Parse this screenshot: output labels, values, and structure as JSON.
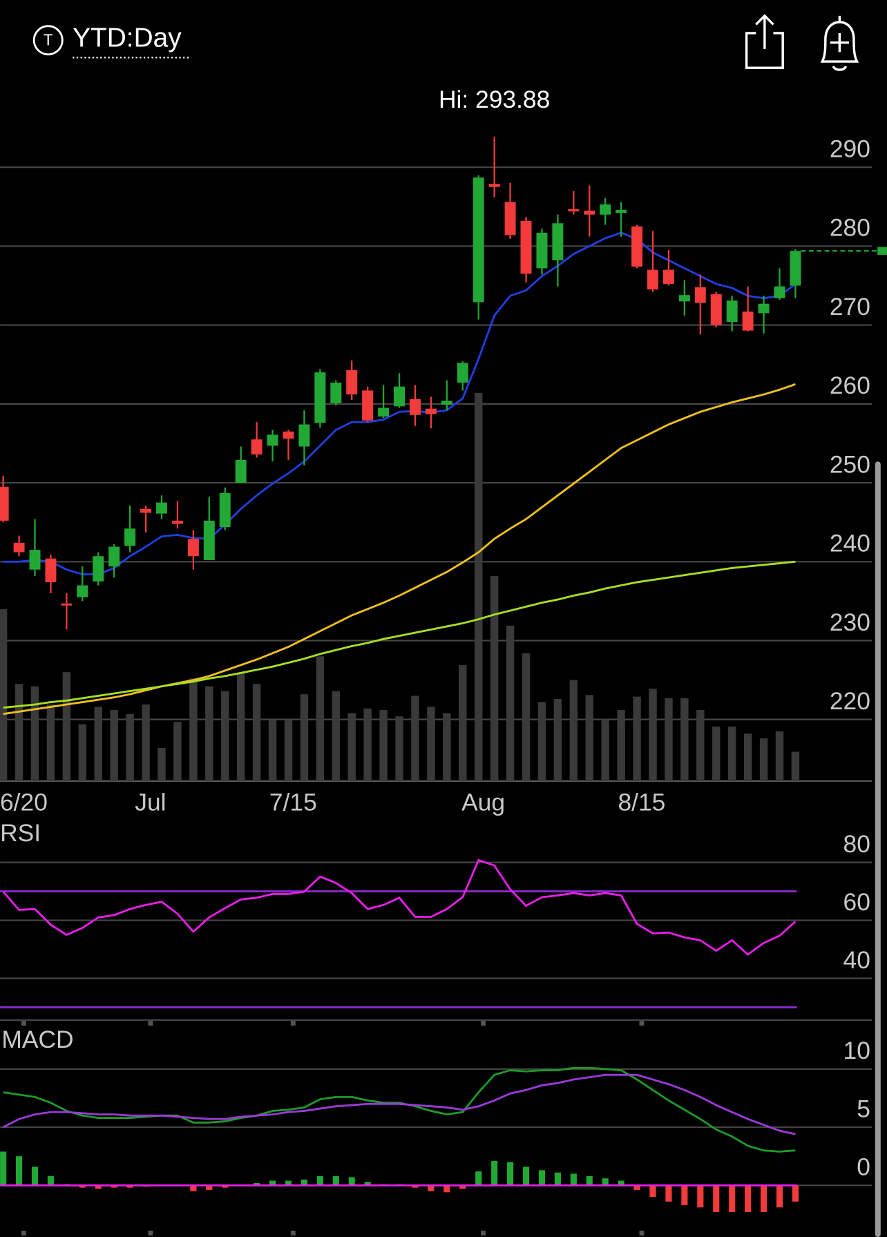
{
  "header": {
    "badge": "T",
    "title": "YTD:Day"
  },
  "chart_data": [
    {
      "type": "candlestick",
      "annotation": "Hi: 293.88",
      "categories": [
        null,
        "6/20",
        null,
        null,
        null,
        null,
        null,
        null,
        null,
        "Jul",
        null,
        null,
        null,
        null,
        null,
        null,
        null,
        null,
        "7/15",
        null,
        null,
        null,
        null,
        null,
        null,
        null,
        null,
        null,
        null,
        null,
        "Aug",
        null,
        null,
        null,
        null,
        null,
        null,
        null,
        null,
        null,
        "8/15",
        null,
        null,
        null,
        null,
        null,
        null,
        null,
        null,
        null,
        null
      ],
      "open": [
        249.5,
        242.4,
        239.0,
        240.4,
        234.7,
        235.5,
        237.5,
        239.4,
        242.0,
        246.7,
        246.1,
        245.2,
        242.9,
        240.2,
        244.4,
        250.0,
        255.5,
        254.7,
        256.5,
        254.6,
        257.6,
        260.1,
        264.3,
        261.7,
        258.4,
        259.7,
        260.6,
        259.4,
        259.9,
        262.7,
        272.9,
        287.9,
        285.6,
        283.2,
        277.2,
        278.2,
        284.7,
        284.5,
        284.0,
        284.2,
        282.5,
        277.0,
        277.0,
        273.0,
        274.8,
        273.9,
        270.4,
        271.7,
        271.5,
        273.4,
        275.0
      ],
      "high": [
        250.9,
        243.3,
        245.4,
        240.9,
        236.0,
        239.4,
        241.2,
        242.2,
        247.1,
        247.1,
        248.4,
        247.7,
        244.0,
        248.2,
        249.4,
        254.6,
        257.7,
        256.7,
        256.7,
        259.2,
        264.4,
        263.0,
        265.5,
        262.2,
        262.4,
        263.9,
        262.4,
        260.9,
        263.0,
        265.4,
        289.0,
        293.88,
        288.0,
        283.7,
        282.2,
        284.0,
        287.0,
        287.7,
        286.1,
        285.6,
        282.7,
        281.9,
        279.5,
        275.7,
        276.4,
        274.2,
        273.7,
        274.9,
        273.7,
        277.2,
        279.6
      ],
      "low": [
        245.0,
        240.7,
        238.2,
        236.0,
        231.4,
        235.0,
        237.0,
        238.0,
        241.2,
        243.7,
        245.4,
        244.2,
        239.0,
        240.2,
        244.0,
        250.0,
        253.2,
        252.7,
        252.9,
        252.2,
        257.0,
        259.8,
        260.5,
        257.7,
        258.2,
        259.5,
        257.2,
        256.9,
        259.2,
        261.7,
        270.7,
        286.2,
        280.9,
        275.4,
        276.4,
        274.9,
        284.0,
        281.2,
        282.7,
        281.2,
        277.2,
        274.2,
        275.0,
        271.2,
        268.8,
        269.7,
        269.2,
        269.2,
        268.9,
        273.2,
        273.4
      ],
      "close": [
        245.2,
        241.2,
        241.5,
        237.4,
        234.5,
        237.0,
        240.7,
        241.9,
        244.2,
        246.2,
        247.5,
        244.8,
        240.7,
        245.2,
        248.7,
        252.9,
        253.6,
        256.1,
        255.6,
        257.4,
        264.0,
        262.7,
        261.2,
        257.9,
        259.5,
        262.2,
        258.6,
        258.7,
        260.4,
        265.2,
        288.7,
        287.5,
        281.4,
        276.5,
        281.7,
        282.9,
        284.4,
        284.0,
        285.3,
        284.6,
        277.4,
        274.5,
        275.2,
        273.8,
        272.8,
        270.0,
        273.1,
        269.3,
        272.7,
        274.9,
        279.4
      ],
      "up_color": "#22a834",
      "down_color": "#f23b3b",
      "overlays": [
        {
          "color": "#1f3fe0",
          "values": [
            240.0,
            240.0,
            240.2,
            240.0,
            239.0,
            238.4,
            238.4,
            239.2,
            240.7,
            241.9,
            243.2,
            243.4,
            243.0,
            242.9,
            244.7,
            246.7,
            248.4,
            249.9,
            251.2,
            252.7,
            254.7,
            256.7,
            257.7,
            257.7,
            258.0,
            259.0,
            259.1,
            258.9,
            259.2,
            260.7,
            265.7,
            271.2,
            273.7,
            274.4,
            276.2,
            277.5,
            279.0,
            280.0,
            281.0,
            281.7,
            280.9,
            279.2,
            278.2,
            277.2,
            276.2,
            275.2,
            274.7,
            273.7,
            273.4,
            273.7,
            275.2
          ]
        },
        {
          "color": "#f0c020",
          "values": [
            220.7,
            221.0,
            221.3,
            221.6,
            221.9,
            222.2,
            222.5,
            222.8,
            223.2,
            223.7,
            224.2,
            224.6,
            225.0,
            225.5,
            226.2,
            226.9,
            227.6,
            228.4,
            229.2,
            230.2,
            231.2,
            232.2,
            233.2,
            234.0,
            234.8,
            235.7,
            236.7,
            237.7,
            238.7,
            239.9,
            241.2,
            242.9,
            244.2,
            245.4,
            246.9,
            248.4,
            249.9,
            251.4,
            252.9,
            254.4,
            255.4,
            256.4,
            257.4,
            258.2,
            259.0,
            259.6,
            260.2,
            260.7,
            261.2,
            261.8,
            262.5
          ]
        },
        {
          "color": "#a8e020",
          "values": [
            221.5,
            221.7,
            221.9,
            222.2,
            222.4,
            222.7,
            223.0,
            223.3,
            223.6,
            223.9,
            224.2,
            224.5,
            224.8,
            225.2,
            225.5,
            225.9,
            226.3,
            226.7,
            227.2,
            227.7,
            228.3,
            228.8,
            229.3,
            229.7,
            230.2,
            230.6,
            231.0,
            231.4,
            231.8,
            232.2,
            232.7,
            233.3,
            233.8,
            234.3,
            234.8,
            235.2,
            235.7,
            236.1,
            236.6,
            237.0,
            237.4,
            237.7,
            238.0,
            238.3,
            238.6,
            238.9,
            239.2,
            239.4,
            239.6,
            239.8,
            240.0
          ]
        }
      ],
      "volume": {
        "color": "#3a3a3a",
        "values": [
          218,
          123,
          120,
          97,
          138,
          72,
          94,
          90,
          85,
          97,
          42,
          75,
          130,
          120,
          114,
          137,
          123,
          78,
          78,
          110,
          158,
          114,
          86,
          92,
          90,
          82,
          108,
          94,
          86,
          147,
          492,
          260,
          197,
          162,
          100,
          104,
          128,
          109,
          78,
          90,
          107,
          117,
          105,
          105,
          90,
          69,
          69,
          60,
          54,
          63,
          37
        ]
      },
      "ylim": [
        212.2,
        296.2
      ],
      "yticks": [
        220,
        230,
        240,
        250,
        260,
        270,
        280,
        290
      ],
      "grid": true,
      "last_price_line": true
    },
    {
      "type": "line",
      "title": "RSI",
      "series": [
        {
          "color": "#e81ee8",
          "values": [
            69.9,
            63.6,
            63.9,
            58.5,
            55.0,
            57.4,
            61.0,
            61.8,
            63.9,
            65.3,
            66.4,
            62.3,
            56.1,
            61.0,
            64.2,
            67.2,
            67.8,
            69.1,
            69.1,
            69.9,
            75.1,
            72.9,
            69.4,
            63.9,
            65.3,
            67.8,
            61.2,
            61.2,
            63.9,
            68.0,
            80.8,
            78.9,
            70.7,
            65.0,
            68.0,
            68.6,
            69.4,
            68.6,
            69.4,
            68.6,
            58.8,
            55.5,
            55.8,
            54.1,
            53.1,
            49.5,
            53.1,
            48.2,
            52.2,
            54.7,
            59.6
          ]
        }
      ],
      "levels": [
        70,
        30
      ],
      "level_color": "#8a2ad0",
      "ylim": [
        25.6,
        93.1
      ],
      "yticks": [
        40,
        60,
        80
      ],
      "grid": true
    },
    {
      "type": "macd",
      "title": "MACD",
      "series": [
        {
          "color": "#1e9a2a",
          "values": [
            8.0,
            7.8,
            7.6,
            7.1,
            6.4,
            6.0,
            5.8,
            5.8,
            5.8,
            5.9,
            6.0,
            6.0,
            5.4,
            5.4,
            5.5,
            5.8,
            6.0,
            6.4,
            6.5,
            6.7,
            7.4,
            7.6,
            7.6,
            7.3,
            7.1,
            7.1,
            6.8,
            6.4,
            6.1,
            6.3,
            8.0,
            9.5,
            9.9,
            9.8,
            9.9,
            9.9,
            10.1,
            10.1,
            10.0,
            9.9,
            9.1,
            8.2,
            7.3,
            6.5,
            5.7,
            4.8,
            4.2,
            3.4,
            3.0,
            2.9,
            3.0
          ]
        },
        {
          "color": "#9a3ad8",
          "values": [
            5.0,
            5.7,
            6.1,
            6.3,
            6.3,
            6.2,
            6.1,
            6.1,
            6.0,
            6.0,
            6.0,
            5.9,
            5.8,
            5.7,
            5.7,
            5.9,
            6.0,
            6.1,
            6.3,
            6.4,
            6.6,
            6.8,
            6.9,
            7.0,
            7.0,
            7.0,
            6.9,
            6.8,
            6.7,
            6.5,
            6.8,
            7.3,
            7.9,
            8.2,
            8.6,
            8.8,
            9.1,
            9.3,
            9.5,
            9.5,
            9.5,
            9.1,
            8.7,
            8.2,
            7.6,
            6.9,
            6.3,
            5.7,
            5.2,
            4.7,
            4.4
          ]
        }
      ],
      "histogram": {
        "up_color": "#22a834",
        "down_color": "#f23b3b",
        "values": [
          2.9,
          2.5,
          1.6,
          0.8,
          0.1,
          -0.2,
          -0.3,
          -0.2,
          -0.2,
          -0.1,
          -0.05,
          0.05,
          -0.5,
          -0.4,
          -0.2,
          0.05,
          0.2,
          0.4,
          0.4,
          0.5,
          0.8,
          0.8,
          0.7,
          0.3,
          0.1,
          0.1,
          -0.2,
          -0.5,
          -0.6,
          -0.3,
          1.2,
          2.1,
          2.0,
          1.6,
          1.3,
          1.1,
          1.0,
          0.8,
          0.6,
          0.4,
          -0.4,
          -1.0,
          -1.4,
          -1.7,
          -1.9,
          -2.3,
          -2.3,
          -2.3,
          -2.3,
          -1.9,
          -1.4
        ]
      },
      "zero_line_color": "#e81ee8",
      "ylim": [
        -3.9,
        13.4
      ],
      "yticks": [
        0,
        5,
        10
      ],
      "grid": true
    }
  ]
}
